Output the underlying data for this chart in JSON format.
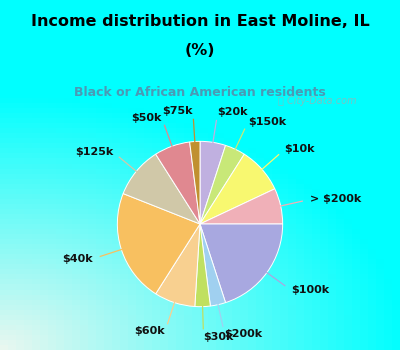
{
  "title_line1": "Income distribution in East Moline, IL",
  "title_line2": "(%)",
  "subtitle": "Black or African American residents",
  "title_color": "#000000",
  "subtitle_color": "#4a9ab5",
  "bg_top": "#00ffff",
  "watermark": "ⓘ City-Data.com",
  "slices": [
    {
      "label": "$20k",
      "value": 5,
      "color": "#c0b0e0"
    },
    {
      "label": "$150k",
      "value": 4,
      "color": "#c8e878"
    },
    {
      "label": "$10k",
      "value": 9,
      "color": "#f8f870"
    },
    {
      "label": "> $200k",
      "value": 7,
      "color": "#f0b0b8"
    },
    {
      "label": "$100k",
      "value": 20,
      "color": "#a8a8e0"
    },
    {
      "label": "$200k",
      "value": 3,
      "color": "#a0d0f0"
    },
    {
      "label": "$30k",
      "value": 3,
      "color": "#c0e060"
    },
    {
      "label": "$60k",
      "value": 8,
      "color": "#f8d090"
    },
    {
      "label": "$40k",
      "value": 22,
      "color": "#f8c060"
    },
    {
      "label": "$125k",
      "value": 10,
      "color": "#d0c8a8"
    },
    {
      "label": "$50k",
      "value": 7,
      "color": "#e08890"
    },
    {
      "label": "$75k",
      "value": 2,
      "color": "#c09030"
    }
  ],
  "label_fontsize": 8,
  "label_color": "#111111",
  "label_fontweight": "bold"
}
